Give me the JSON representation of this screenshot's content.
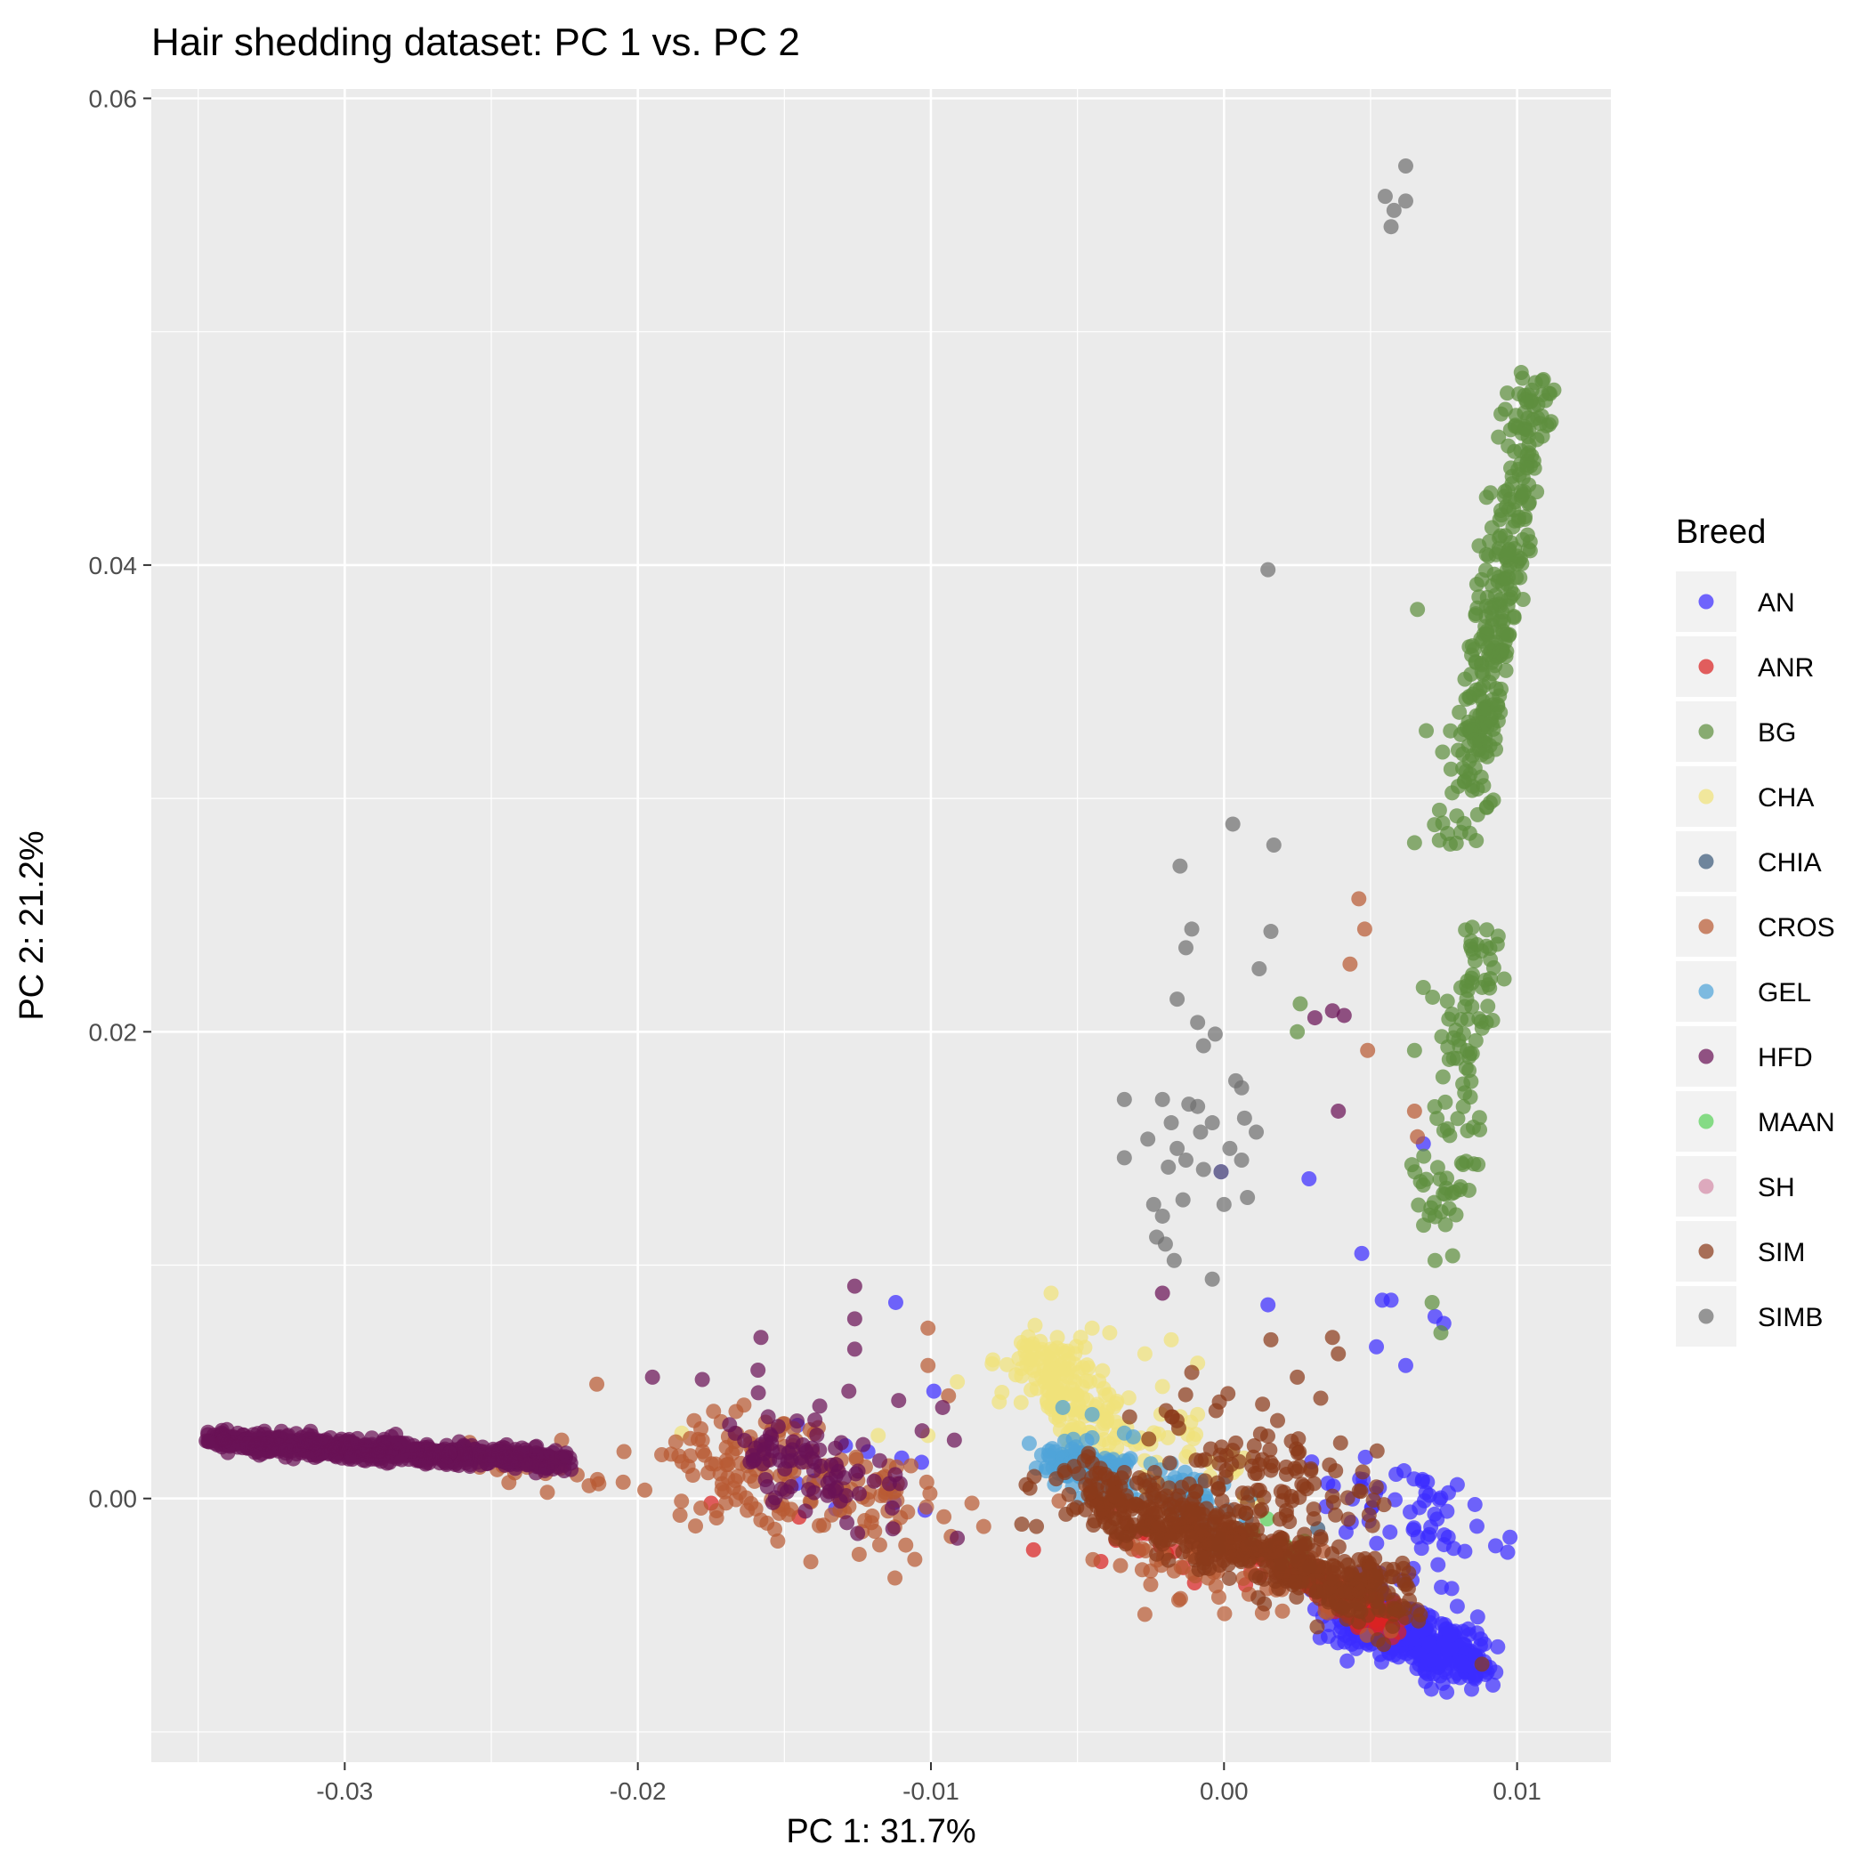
{
  "chart_data": {
    "type": "scatter",
    "title": "Hair shedding dataset: PC 1 vs. PC 2",
    "xlabel": "PC 1: 31.7%",
    "ylabel": "PC 2: 21.2%",
    "xlim": [
      -0.0366,
      0.0132
    ],
    "ylim": [
      -0.0113,
      0.0604
    ],
    "x_ticks": [
      -0.03,
      -0.02,
      -0.01,
      0.0,
      0.01
    ],
    "x_tick_labels": [
      "-0.03",
      "-0.02",
      "-0.01",
      "0.00",
      "0.01"
    ],
    "y_ticks": [
      0.0,
      0.02,
      0.04,
      0.06
    ],
    "y_tick_labels": [
      "0.00",
      "0.02",
      "0.04",
      "0.06"
    ],
    "grid": true,
    "legend": {
      "title": "Breed",
      "position": "right"
    },
    "series": [
      {
        "name": "AN",
        "color": "#3c2dff",
        "clusters": [
          {
            "cx": [
              0.004,
              0.0085
            ],
            "cy": [
              -0.0045,
              -0.0072
            ],
            "n": 380,
            "spread": 0.0006
          },
          {
            "cx": [
              0.005,
              0.0075
            ],
            "cy": [
              0.0002,
              -0.002
            ],
            "n": 60,
            "spread": 0.0012
          },
          {
            "cx": [
              -0.014,
              -0.012
            ],
            "cy": [
              0.0022,
              0.0012
            ],
            "n": 10,
            "spread": 0.001
          }
        ],
        "points": [
          [
            0.0057,
            0.0085
          ],
          [
            0.0052,
            0.0065
          ],
          [
            0.0075,
            0.0075
          ],
          [
            0.0062,
            0.0057
          ],
          [
            0.0072,
            0.0078
          ],
          [
            0.0054,
            0.0085
          ],
          [
            0.0047,
            0.0105
          ],
          [
            0.0029,
            0.0137
          ],
          [
            0.0068,
            0.0152
          ],
          [
            -0.0001,
            0.014
          ],
          [
            0.0015,
            0.0083
          ],
          [
            -0.0112,
            0.0084
          ],
          [
            -0.0099,
            0.0046
          ],
          [
            -0.0102,
            -0.0005
          ]
        ]
      },
      {
        "name": "ANR",
        "color": "#d92323",
        "clusters": [
          {
            "cx": [
              0.0025,
              0.0055
            ],
            "cy": [
              -0.003,
              -0.0052
            ],
            "n": 160,
            "spread": 0.0003
          },
          {
            "cx": [
              -0.004,
              0.002
            ],
            "cy": [
              -0.002,
              -0.003
            ],
            "n": 25,
            "spread": 0.0007
          }
        ],
        "points": [
          [
            -0.0175,
            -0.0002
          ],
          [
            -0.0145,
            -0.0008
          ],
          [
            -0.0065,
            -0.0022
          ],
          [
            -0.0042,
            -0.0027
          ]
        ]
      },
      {
        "name": "BG",
        "color": "#5e8f3e",
        "clusters": [
          {
            "cx": [
              0.0085,
              0.0106
            ],
            "cy": [
              0.032,
              0.048
            ],
            "n": 260,
            "spread": 0.0004
          },
          {
            "cx": [
              0.008,
              0.009
            ],
            "cy": [
              0.028,
              0.034
            ],
            "n": 60,
            "spread": 0.0005
          },
          {
            "cx": [
              0.0073,
              0.0088
            ],
            "cy": [
              0.012,
              0.024
            ],
            "n": 110,
            "spread": 0.0005
          }
        ],
        "points": [
          [
            0.0066,
            0.0381
          ],
          [
            0.0069,
            0.0329
          ],
          [
            0.0065,
            0.0281
          ],
          [
            0.0068,
            0.0219
          ],
          [
            0.0065,
            0.0192
          ],
          [
            0.0072,
            0.0102
          ],
          [
            0.0078,
            0.0104
          ],
          [
            0.0071,
            0.0084
          ],
          [
            0.0074,
            0.0071
          ],
          [
            0.0026,
            0.0212
          ],
          [
            0.0025,
            0.02
          ]
        ]
      },
      {
        "name": "CHA",
        "color": "#f0e27a",
        "clusters": [
          {
            "cx": [
              -0.0065,
              -0.0045
            ],
            "cy": [
              0.0062,
              0.003
            ],
            "n": 160,
            "spread": 0.0007
          },
          {
            "cx": [
              -0.0035,
              0.0
            ],
            "cy": [
              0.0025,
              0.001
            ],
            "n": 45,
            "spread": 0.0009
          }
        ],
        "points": [
          [
            -0.0059,
            0.0088
          ],
          [
            -0.0045,
            0.0073
          ],
          [
            -0.0039,
            0.0071
          ],
          [
            -0.0027,
            0.0062
          ],
          [
            -0.0018,
            0.0068
          ],
          [
            -0.0021,
            0.0048
          ],
          [
            -0.0009,
            0.0058
          ],
          [
            -0.0009,
            0.0036
          ],
          [
            -0.0091,
            0.005
          ],
          [
            -0.0101,
            0.0027
          ],
          [
            -0.0118,
            0.0027
          ],
          [
            -0.0185,
            0.0028
          ]
        ]
      },
      {
        "name": "CHIA",
        "color": "#3c5a7a",
        "clusters": [],
        "points": [
          [
            0.0032,
            -0.0013
          ]
        ]
      },
      {
        "name": "CROS",
        "color": "#b85a33",
        "clusters": [
          {
            "cx": [
              -0.018,
              -0.011
            ],
            "cy": [
              0.0022,
              -0.0005
            ],
            "n": 170,
            "spread": 0.0012
          },
          {
            "cx": [
              -0.0045,
              0.005
            ],
            "cy": [
              -0.0015,
              -0.0045
            ],
            "n": 70,
            "spread": 0.001
          },
          {
            "cx": [
              -0.026,
              -0.022
            ],
            "cy": [
              0.0018,
              0.0012
            ],
            "n": 30,
            "spread": 0.0005
          }
        ],
        "points": [
          [
            0.0046,
            0.0257
          ],
          [
            0.0048,
            0.0244
          ],
          [
            0.0043,
            0.0229
          ],
          [
            0.0049,
            0.0192
          ],
          [
            0.0065,
            0.0166
          ],
          [
            0.0066,
            0.0155
          ],
          [
            -0.0101,
            0.0073
          ],
          [
            -0.0101,
            0.0057
          ],
          [
            -0.0094,
            0.0044
          ],
          [
            -0.0214,
            0.0049
          ],
          [
            -0.0226,
            0.0025
          ],
          [
            -0.0205,
            0.0007
          ],
          [
            -0.0242,
            0.0011
          ],
          [
            -0.0082,
            -0.0012
          ],
          [
            -0.0086,
            -0.0002
          ]
        ]
      },
      {
        "name": "GEL",
        "color": "#4fa3d8",
        "clusters": [
          {
            "cx": [
              -0.0058,
              -0.0035
            ],
            "cy": [
              0.0018,
              0.0008
            ],
            "n": 140,
            "spread": 0.0004
          },
          {
            "cx": [
              -0.003,
              0.0
            ],
            "cy": [
              0.001,
              -0.0008
            ],
            "n": 50,
            "spread": 0.0006
          }
        ],
        "points": [
          [
            -0.0055,
            0.0039
          ],
          [
            -0.0045,
            0.0036
          ],
          [
            -0.0034,
            0.0028
          ],
          [
            -0.0018,
            0.0015
          ]
        ]
      },
      {
        "name": "HFD",
        "color": "#6a1256",
        "clusters": [
          {
            "cx": [
              -0.0345,
              -0.0225
            ],
            "cy": [
              0.0025,
              0.0016
            ],
            "n": 700,
            "spread": 0.00022
          },
          {
            "cx": [
              -0.016,
              -0.0125
            ],
            "cy": [
              0.0025,
              0.0005
            ],
            "n": 80,
            "spread": 0.0009
          }
        ],
        "points": [
          [
            -0.0126,
            0.0091
          ],
          [
            -0.0126,
            0.0077
          ],
          [
            -0.0158,
            0.0069
          ],
          [
            -0.0126,
            0.0064
          ],
          [
            -0.0159,
            0.0055
          ],
          [
            -0.0195,
            0.0052
          ],
          [
            -0.0178,
            0.0051
          ],
          [
            -0.0128,
            0.0046
          ],
          [
            -0.0096,
            0.0039
          ],
          [
            -0.0111,
            0.0042
          ],
          [
            -0.0103,
            0.0029
          ],
          [
            -0.0092,
            0.0025
          ],
          [
            -0.0091,
            -0.0017
          ],
          [
            -0.0125,
            -0.0015
          ],
          [
            -0.0113,
            -0.0013
          ],
          [
            -0.0021,
            0.0088
          ],
          [
            0.0037,
            0.0209
          ],
          [
            0.0031,
            0.0206
          ],
          [
            0.0041,
            0.0207
          ],
          [
            0.0039,
            0.0166
          ]
        ]
      },
      {
        "name": "MAAN",
        "color": "#5ad15a",
        "clusters": [
          {
            "cx": [
              0.0003,
              0.0028
            ],
            "cy": [
              -0.0012,
              -0.0028
            ],
            "n": 14,
            "spread": 0.0004
          }
        ],
        "points": []
      },
      {
        "name": "SH",
        "color": "#d48ca8",
        "clusters": [],
        "points": [
          [
            0.0005,
            -0.0016
          ],
          [
            0.0019,
            -0.0021
          ]
        ]
      },
      {
        "name": "SIM",
        "color": "#8a3a1a",
        "clusters": [
          {
            "cx": [
              -0.005,
              0.006
            ],
            "cy": [
              0.0004,
              -0.0044
            ],
            "n": 520,
            "spread": 0.0007
          },
          {
            "cx": [
              -0.002,
              0.005
            ],
            "cy": [
              0.003,
              0.0
            ],
            "n": 90,
            "spread": 0.001
          }
        ],
        "points": [
          [
            0.0037,
            0.0069
          ],
          [
            0.0039,
            0.0062
          ],
          [
            0.0016,
            0.0068
          ],
          [
            0.0025,
            0.0052
          ],
          [
            0.0033,
            0.0043
          ],
          [
            -0.0011,
            0.0054
          ],
          [
            -0.0064,
            -0.0012
          ],
          [
            -0.0069,
            -0.0011
          ],
          [
            0.0088,
            -0.0071
          ],
          [
            -0.0002,
            0.0004
          ],
          [
            -0.0001,
            -0.0023
          ]
        ]
      },
      {
        "name": "SIMB",
        "color": "#707070",
        "clusters": [],
        "points": [
          [
            0.0062,
            0.0571
          ],
          [
            0.0055,
            0.0558
          ],
          [
            0.0062,
            0.0556
          ],
          [
            0.0058,
            0.0552
          ],
          [
            0.0057,
            0.0545
          ],
          [
            0.0015,
            0.0398
          ],
          [
            0.0003,
            0.0289
          ],
          [
            0.0017,
            0.028
          ],
          [
            -0.0015,
            0.0271
          ],
          [
            -0.0011,
            0.0244
          ],
          [
            0.0016,
            0.0243
          ],
          [
            -0.0013,
            0.0236
          ],
          [
            0.0012,
            0.0227
          ],
          [
            -0.0016,
            0.0214
          ],
          [
            -0.0009,
            0.0204
          ],
          [
            -0.0003,
            0.0199
          ],
          [
            -0.0007,
            0.0194
          ],
          [
            0.0004,
            0.0179
          ],
          [
            0.0006,
            0.0176
          ],
          [
            -0.0034,
            0.0171
          ],
          [
            -0.0021,
            0.0171
          ],
          [
            -0.0012,
            0.0169
          ],
          [
            -0.0009,
            0.0168
          ],
          [
            0.0007,
            0.0163
          ],
          [
            -0.0004,
            0.0161
          ],
          [
            -0.0018,
            0.0161
          ],
          [
            -0.0008,
            0.0157
          ],
          [
            0.0011,
            0.0157
          ],
          [
            -0.0026,
            0.0154
          ],
          [
            -0.0016,
            0.015
          ],
          [
            0.0002,
            0.015
          ],
          [
            -0.0034,
            0.0146
          ],
          [
            -0.0013,
            0.0145
          ],
          [
            -0.0019,
            0.0142
          ],
          [
            -0.0007,
            0.0141
          ],
          [
            -0.0001,
            0.014
          ],
          [
            0.0006,
            0.0145
          ],
          [
            0.0008,
            0.0129
          ],
          [
            -0.0014,
            0.0128
          ],
          [
            0.0,
            0.0126
          ],
          [
            -0.0024,
            0.0126
          ],
          [
            -0.0021,
            0.0121
          ],
          [
            -0.0023,
            0.0112
          ],
          [
            -0.002,
            0.0109
          ],
          [
            -0.0017,
            0.0102
          ],
          [
            -0.0004,
            0.0094
          ]
        ]
      }
    ]
  }
}
